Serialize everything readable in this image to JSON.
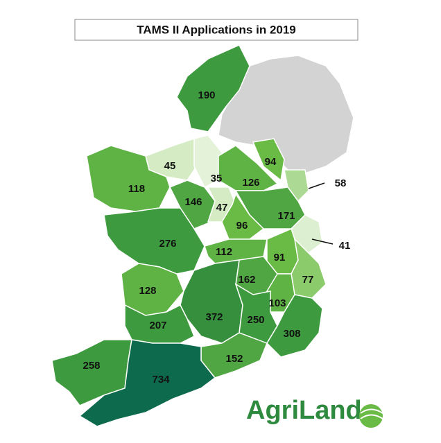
{
  "title": "TAMS II Applications in 2019",
  "regions": [
    {
      "value": 190,
      "color": "#3e9a3f"
    },
    {
      "value": 45,
      "color": "#d4ebc3"
    },
    {
      "value": 35,
      "color": "#e3f2d8"
    },
    {
      "value": 118,
      "color": "#5fb244"
    },
    {
      "value": 146,
      "color": "#4fa642"
    },
    {
      "value": 47,
      "color": "#d4ebc3"
    },
    {
      "value": 126,
      "color": "#5fb244"
    },
    {
      "value": 94,
      "color": "#6abb45"
    },
    {
      "value": 58,
      "color": "#acd993"
    },
    {
      "value": 171,
      "color": "#4fa642"
    },
    {
      "value": 96,
      "color": "#6abb45"
    },
    {
      "value": 41,
      "color": "#dcefd0"
    },
    {
      "value": 276,
      "color": "#3e9a3f"
    },
    {
      "value": 112,
      "color": "#5fb244"
    },
    {
      "value": 91,
      "color": "#6abb45"
    },
    {
      "value": 77,
      "color": "#8ccb6b"
    },
    {
      "value": 162,
      "color": "#4fa642"
    },
    {
      "value": 128,
      "color": "#5fb244"
    },
    {
      "value": 103,
      "color": "#5fb244"
    },
    {
      "value": 372,
      "color": "#368f3c"
    },
    {
      "value": 250,
      "color": "#3e9a3f"
    },
    {
      "value": 308,
      "color": "#3e9a3f"
    },
    {
      "value": 207,
      "color": "#3e9a3f"
    },
    {
      "value": 152,
      "color": "#4fa642"
    },
    {
      "value": 258,
      "color": "#3e9a3f"
    },
    {
      "value": 734,
      "color": "#0d6a4c"
    }
  ],
  "logo": "AgriLand"
}
